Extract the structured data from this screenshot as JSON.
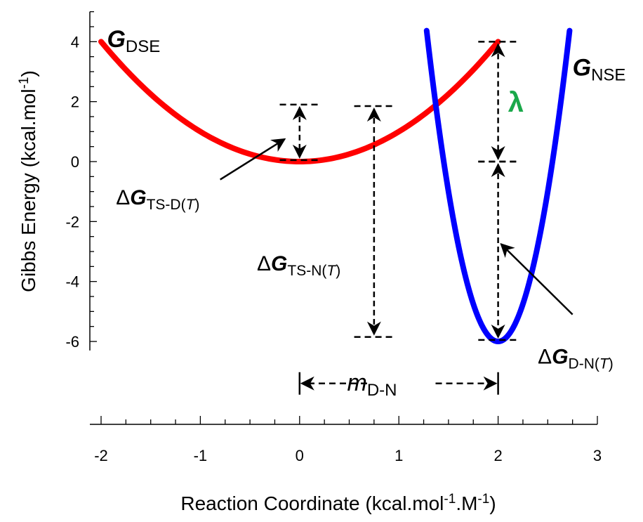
{
  "chart_data": {
    "type": "line",
    "title": "",
    "xlabel_parts": {
      "main": "Reaction Coordinate (kcal.mol",
      "sup1": "-1",
      "mid": ".M",
      "sup2": "-1",
      "end": ")"
    },
    "ylabel_parts": {
      "main": "Gibbs Energy (kcal.mol",
      "sup": "-1",
      "end": ")"
    },
    "xlim": [
      -2,
      3
    ],
    "ylim": [
      -6.3,
      5
    ],
    "x_ticks": [
      -2,
      -1,
      0,
      1,
      2,
      3
    ],
    "y_ticks": [
      -6,
      -4,
      -2,
      0,
      2,
      4
    ],
    "x_tick_labels": [
      "-2",
      "-1",
      "0",
      "1",
      "2",
      "3"
    ],
    "y_tick_labels": [
      "-6",
      "-4",
      "-2",
      "0",
      "2",
      "4"
    ],
    "series": [
      {
        "name": "G_DSE",
        "color": "#ff0000",
        "form": "parabola",
        "vertex_x": 0,
        "vertex_y": 0,
        "curvature": 1,
        "x_range": [
          -2,
          2
        ]
      },
      {
        "name": "G_NSE",
        "color": "#0000ff",
        "form": "parabola",
        "vertex_x": 2,
        "vertex_y": -6,
        "curvature": 20,
        "x_range": [
          1.28,
          2.72
        ]
      }
    ],
    "annotations": {
      "g_dse": {
        "main": "G",
        "sub": "DSE",
        "x": -1.94,
        "y": 4.05
      },
      "g_nse": {
        "main": "G",
        "sub": "NSE",
        "x": 2.75,
        "y": 3.1
      },
      "lambda": {
        "text": "λ",
        "color": "#1aa84a",
        "x": 2.1,
        "y": 1.9
      },
      "dg_ts_d": {
        "delta": "Δ",
        "main": "G",
        "sub": "TS-D(",
        "sub_italic": "T",
        "sub_end": ")",
        "x": -1.85,
        "y": -1.2
      },
      "dg_ts_n": {
        "delta": "Δ",
        "main": "G",
        "sub": "TS-N(",
        "sub_italic": "T",
        "sub_end": ")",
        "x": -0.43,
        "y": -3.4
      },
      "dg_d_n": {
        "delta": "Δ",
        "main": "G",
        "sub": "D-N(",
        "sub_italic": "T",
        "sub_end": ")",
        "x": 2.4,
        "y": -6.5
      },
      "m_dn": {
        "main": "m",
        "sub": "D-N",
        "x": 0.73,
        "y": -7.4
      }
    },
    "dimension_arrows": [
      {
        "type": "v",
        "x": 0,
        "y1": 1.9,
        "y2": 0.05,
        "cap_half": 0.2
      },
      {
        "type": "v",
        "x": 0.75,
        "y1": 1.85,
        "y2": -5.85,
        "cap_half": 0.2
      },
      {
        "type": "v",
        "x": 2,
        "y1": 4,
        "y2": 0,
        "cap_half": 0.2
      },
      {
        "type": "v",
        "x": 2,
        "y1": 0,
        "y2": -5.95,
        "cap_half": 0.2
      }
    ],
    "pointer_arrows": [
      {
        "from": [
          -0.8,
          -0.6
        ],
        "to": [
          -0.15,
          0.75
        ]
      },
      {
        "from": [
          2.75,
          -5.1
        ],
        "to": [
          2.03,
          -2.75
        ]
      }
    ],
    "m_arrow": {
      "x1": 0,
      "x2": 2,
      "y": -7.4,
      "label_gap": [
        0.68,
        1.37
      ]
    }
  }
}
